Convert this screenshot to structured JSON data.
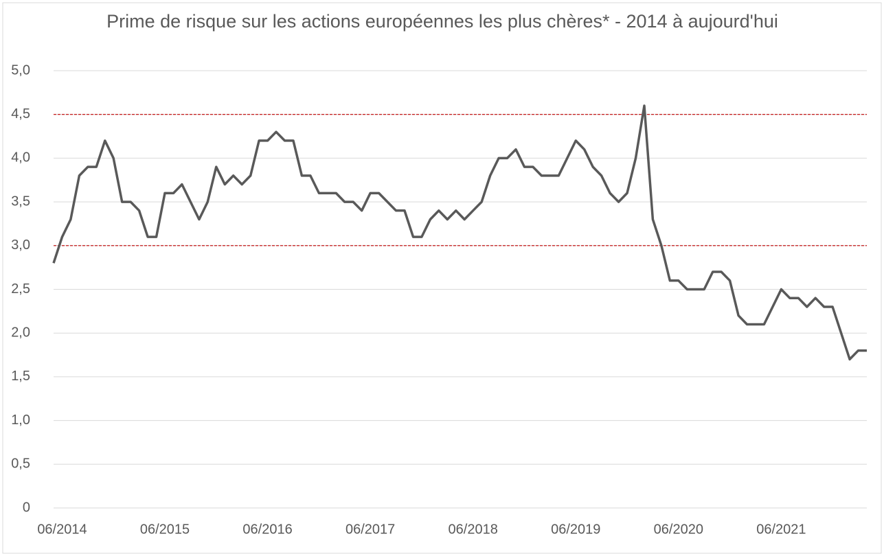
{
  "chart_data": {
    "type": "line",
    "title": "Prime de risque sur les actions européennes les plus chères* - 2014 à aujourd'hui",
    "x": [
      "05/2014",
      "06/2014",
      "07/2014",
      "08/2014",
      "09/2014",
      "10/2014",
      "11/2014",
      "12/2014",
      "01/2015",
      "02/2015",
      "03/2015",
      "04/2015",
      "05/2015",
      "06/2015",
      "07/2015",
      "08/2015",
      "09/2015",
      "10/2015",
      "11/2015",
      "12/2015",
      "01/2016",
      "02/2016",
      "03/2016",
      "04/2016",
      "05/2016",
      "06/2016",
      "07/2016",
      "08/2016",
      "09/2016",
      "10/2016",
      "11/2016",
      "12/2016",
      "01/2017",
      "02/2017",
      "03/2017",
      "04/2017",
      "05/2017",
      "06/2017",
      "07/2017",
      "08/2017",
      "09/2017",
      "10/2017",
      "11/2017",
      "12/2017",
      "01/2018",
      "02/2018",
      "03/2018",
      "04/2018",
      "05/2018",
      "06/2018",
      "07/2018",
      "08/2018",
      "09/2018",
      "10/2018",
      "11/2018",
      "12/2018",
      "01/2019",
      "02/2019",
      "03/2019",
      "04/2019",
      "05/2019",
      "06/2019",
      "07/2019",
      "08/2019",
      "09/2019",
      "10/2019",
      "11/2019",
      "12/2019",
      "01/2020",
      "02/2020",
      "03/2020",
      "04/2020",
      "05/2020",
      "06/2020",
      "07/2020",
      "08/2020",
      "09/2020",
      "10/2020",
      "11/2020",
      "12/2020",
      "01/2021",
      "02/2021",
      "03/2021",
      "04/2021",
      "05/2021",
      "06/2021",
      "07/2021",
      "08/2021",
      "09/2021",
      "10/2021",
      "11/2021",
      "12/2021",
      "01/2022",
      "02/2022",
      "03/2022",
      "04/2022"
    ],
    "series": [
      {
        "color": "#595959",
        "values": [
          2.8,
          3.1,
          3.3,
          3.8,
          3.9,
          3.9,
          4.2,
          4.0,
          3.5,
          3.5,
          3.4,
          3.1,
          3.1,
          3.6,
          3.6,
          3.7,
          3.5,
          3.3,
          3.5,
          3.9,
          3.7,
          3.8,
          3.7,
          3.8,
          4.2,
          4.2,
          4.3,
          4.2,
          4.2,
          3.8,
          3.8,
          3.6,
          3.6,
          3.6,
          3.5,
          3.5,
          3.4,
          3.6,
          3.6,
          3.5,
          3.4,
          3.4,
          3.1,
          3.1,
          3.3,
          3.4,
          3.3,
          3.4,
          3.3,
          3.4,
          3.5,
          3.8,
          4.0,
          4.0,
          4.1,
          3.9,
          3.9,
          3.8,
          3.8,
          3.8,
          4.0,
          4.2,
          4.1,
          3.9,
          3.8,
          3.6,
          3.5,
          3.6,
          4.0,
          4.6,
          3.3,
          3.0,
          2.6,
          2.6,
          2.5,
          2.5,
          2.5,
          2.7,
          2.7,
          2.6,
          2.2,
          2.1,
          2.1,
          2.1,
          2.3,
          2.5,
          2.4,
          2.4,
          2.3,
          2.4,
          2.3,
          2.3,
          2.0,
          1.7,
          1.8,
          1.8
        ]
      }
    ],
    "xticks": [
      "06/2014",
      "06/2015",
      "06/2016",
      "06/2017",
      "06/2018",
      "06/2019",
      "06/2020",
      "06/2021"
    ],
    "ylim": [
      0,
      5
    ],
    "yticks": [
      0,
      {
        "value": 0.5,
        "label": "0,5"
      },
      {
        "value": 1,
        "label": "1,0"
      },
      {
        "value": 1.5,
        "label": "1,5"
      },
      {
        "value": 2,
        "label": "2,0"
      },
      {
        "value": 2.5,
        "label": "2,5"
      },
      {
        "value": 3,
        "label": "3,0"
      },
      {
        "value": 3.5,
        "label": "3,5"
      },
      {
        "value": 4,
        "label": "4,0"
      },
      {
        "value": 4.5,
        "label": "4,5"
      },
      {
        "value": 5,
        "label": "5,0"
      }
    ],
    "grid": true,
    "reference_lines": {
      "color": "#c00000",
      "values": [
        4.5,
        3
      ]
    }
  }
}
